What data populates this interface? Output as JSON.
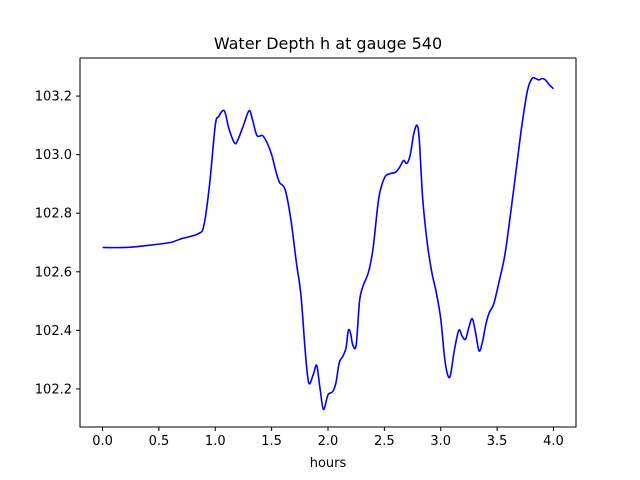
{
  "chart_data": {
    "type": "line",
    "title": "Water Depth h at gauge 540",
    "xlabel": "hours",
    "ylabel": "",
    "xlim": [
      -0.2,
      4.2
    ],
    "ylim": [
      102.07,
      103.33
    ],
    "xticks": [
      0.0,
      0.5,
      1.0,
      1.5,
      2.0,
      2.5,
      3.0,
      3.5,
      4.0
    ],
    "xtick_labels": [
      "0.0",
      "0.5",
      "1.0",
      "1.5",
      "2.0",
      "2.5",
      "3.0",
      "3.5",
      "4.0"
    ],
    "yticks": [
      102.2,
      102.4,
      102.6,
      102.8,
      103.0,
      103.2
    ],
    "ytick_labels": [
      "102.2",
      "102.4",
      "102.6",
      "102.8",
      "103.0",
      "103.2"
    ],
    "grid": false,
    "series": [
      {
        "color": "#0000ff",
        "x": [
          0.0,
          0.2,
          0.4,
          0.6,
          0.7,
          0.85,
          0.9,
          0.95,
          1.0,
          1.03,
          1.08,
          1.12,
          1.17,
          1.2,
          1.25,
          1.3,
          1.33,
          1.37,
          1.42,
          1.46,
          1.5,
          1.54,
          1.57,
          1.62,
          1.67,
          1.72,
          1.76,
          1.8,
          1.83,
          1.87,
          1.9,
          1.93,
          1.96,
          2.0,
          2.04,
          2.07,
          2.1,
          2.13,
          2.16,
          2.18,
          2.2,
          2.22,
          2.25,
          2.28,
          2.31,
          2.36,
          2.4,
          2.45,
          2.5,
          2.55,
          2.6,
          2.64,
          2.67,
          2.7,
          2.73,
          2.76,
          2.79,
          2.81,
          2.84,
          2.88,
          2.92,
          2.96,
          3.0,
          3.04,
          3.08,
          3.12,
          3.16,
          3.19,
          3.22,
          3.25,
          3.28,
          3.31,
          3.34,
          3.37,
          3.4,
          3.43,
          3.47,
          3.52,
          3.57,
          3.62,
          3.67,
          3.72,
          3.77,
          3.81,
          3.84,
          3.87,
          3.9,
          3.93,
          3.96,
          4.0
        ],
        "y": [
          102.683,
          102.683,
          102.69,
          102.7,
          102.713,
          102.73,
          102.76,
          102.9,
          103.1,
          103.13,
          103.15,
          103.09,
          103.04,
          103.05,
          103.1,
          103.15,
          103.12,
          103.065,
          103.065,
          103.04,
          103.0,
          102.94,
          102.905,
          102.88,
          102.78,
          102.63,
          102.52,
          102.32,
          102.22,
          102.25,
          102.28,
          102.2,
          102.13,
          102.18,
          102.19,
          102.22,
          102.29,
          102.31,
          102.34,
          102.4,
          102.39,
          102.35,
          102.35,
          102.5,
          102.55,
          102.6,
          102.68,
          102.85,
          102.92,
          102.935,
          102.94,
          102.96,
          102.98,
          102.97,
          103.0,
          103.07,
          103.1,
          103.05,
          102.85,
          102.7,
          102.6,
          102.53,
          102.44,
          102.29,
          102.24,
          102.33,
          102.4,
          102.38,
          102.37,
          102.41,
          102.44,
          102.39,
          102.33,
          102.36,
          102.42,
          102.46,
          102.49,
          102.57,
          102.66,
          102.8,
          102.95,
          103.1,
          103.22,
          103.26,
          103.26,
          103.255,
          103.26,
          103.255,
          103.24,
          103.225
        ]
      }
    ]
  }
}
